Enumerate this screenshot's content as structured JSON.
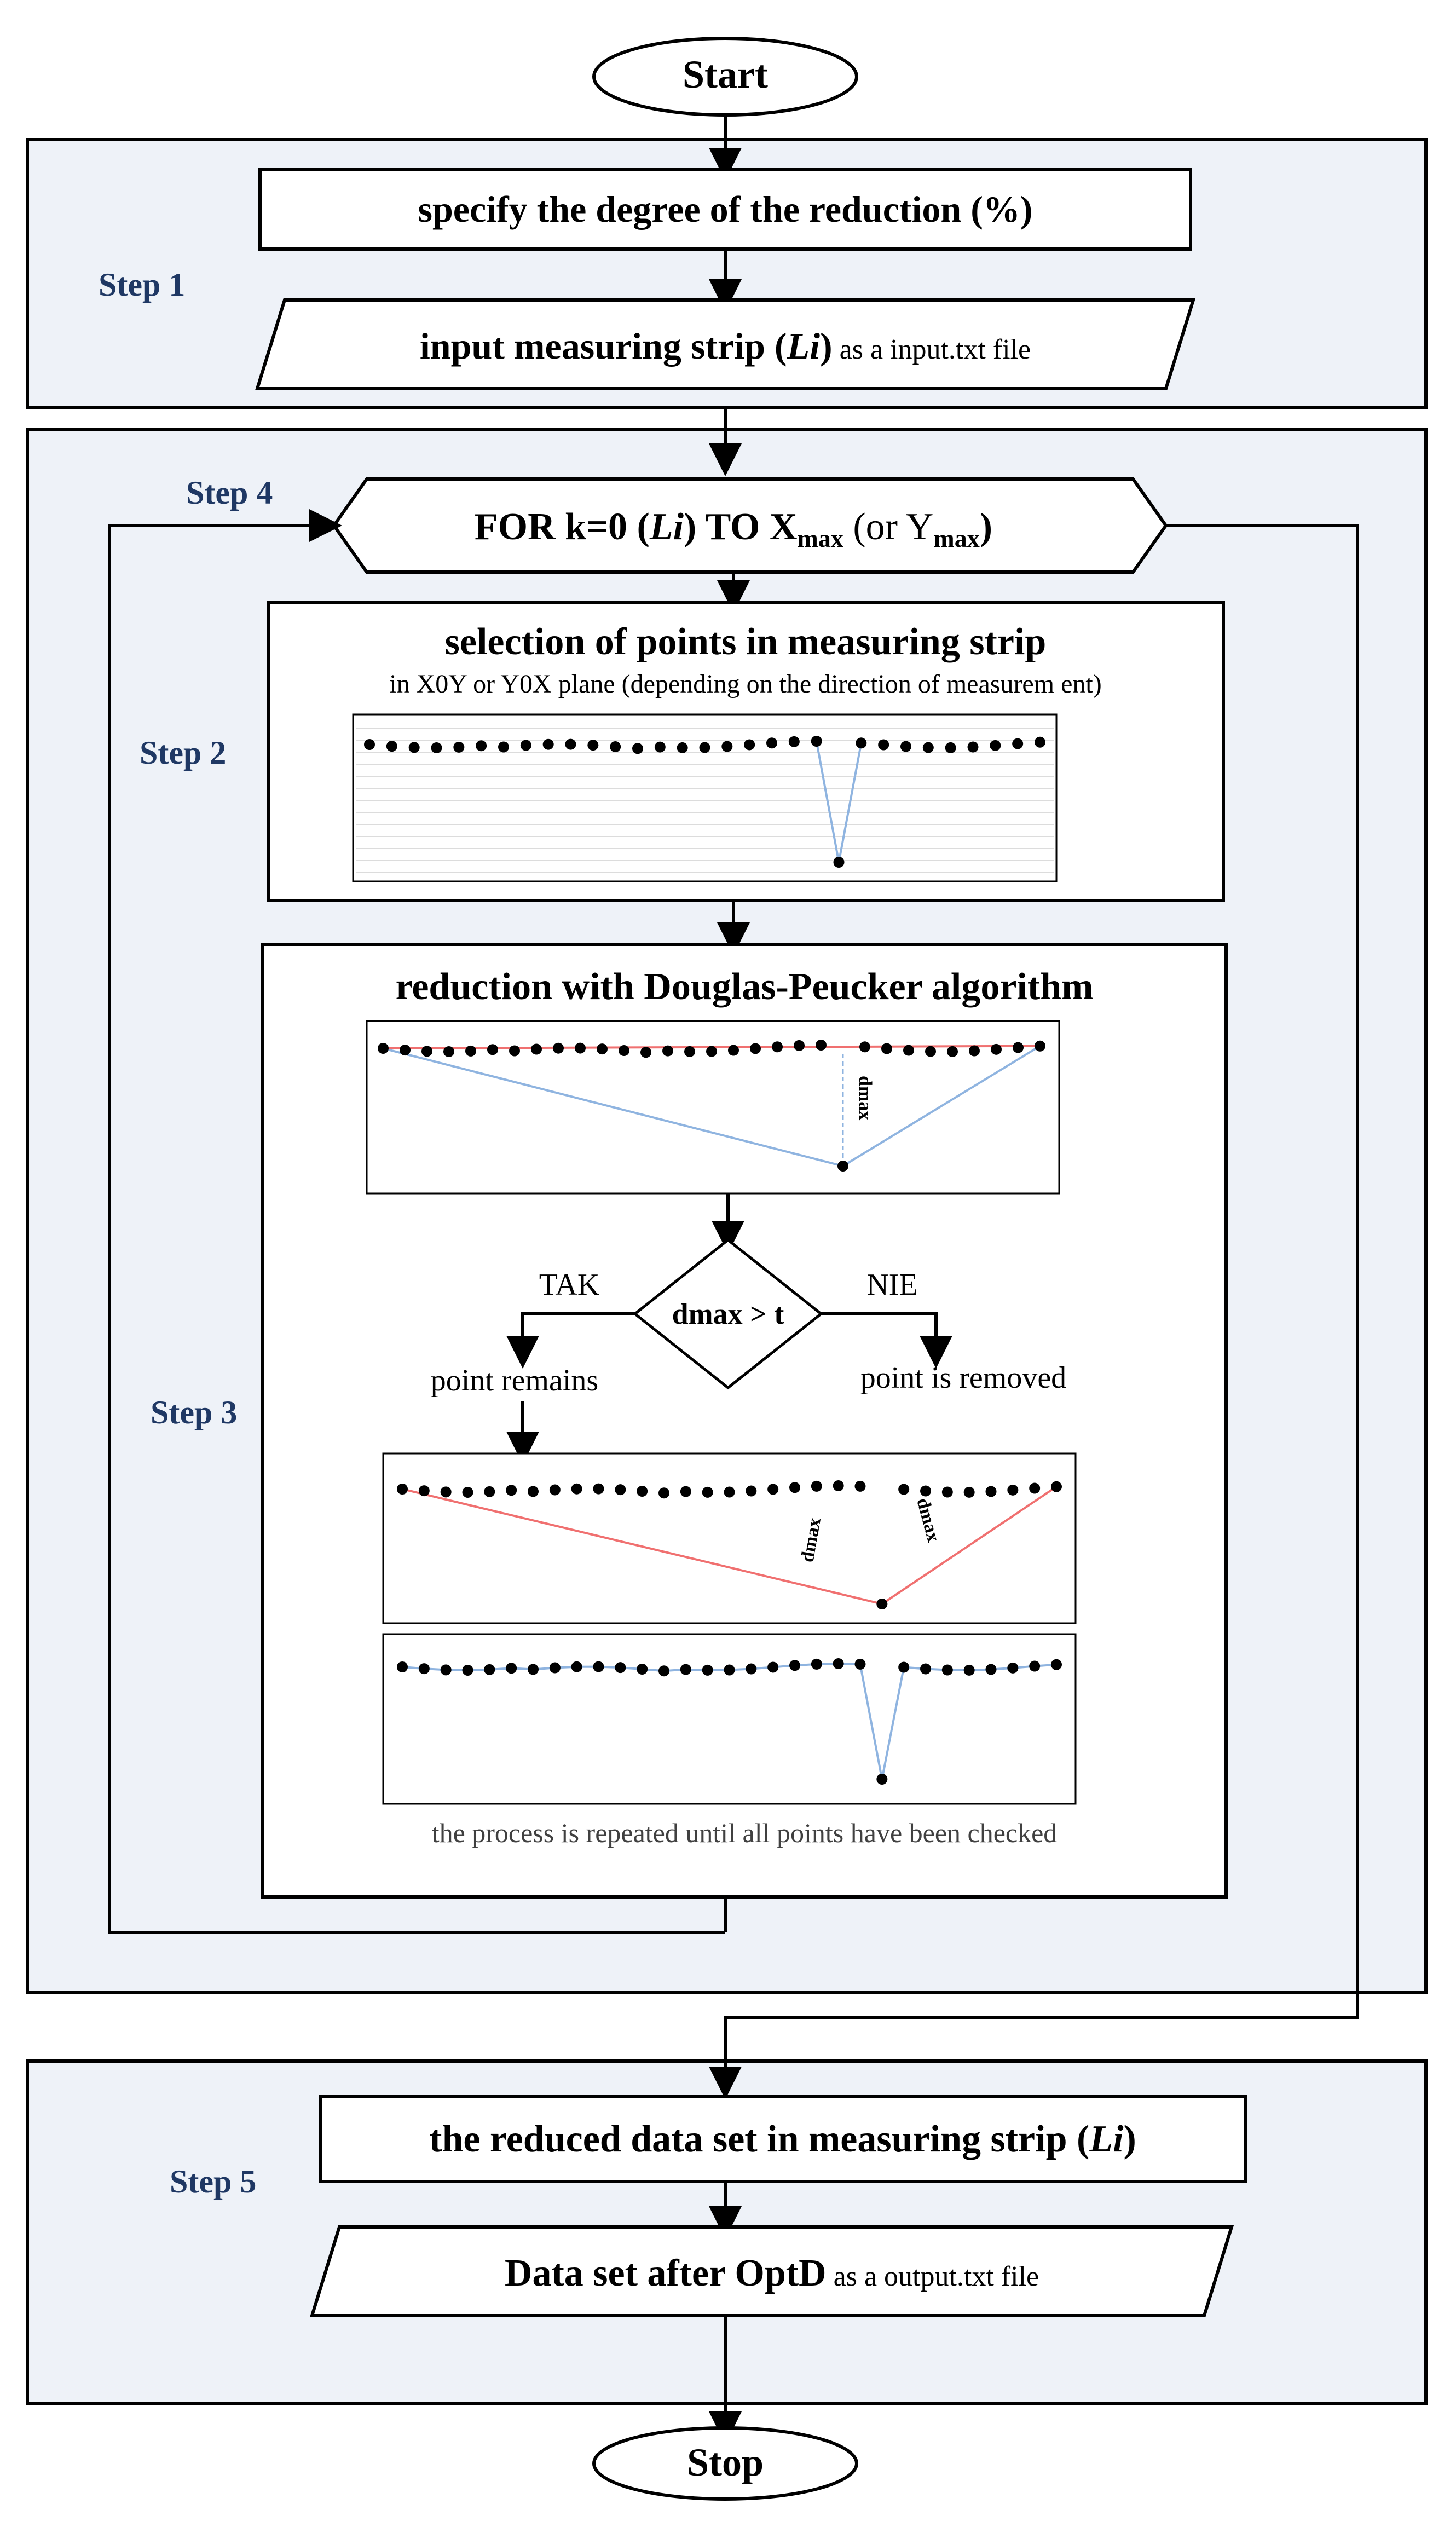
{
  "start_label": "Start",
  "stop_label": "Stop",
  "step_labels": {
    "step1": "Step 1",
    "step2": "Step 2",
    "step3": "Step 3",
    "step4": "Step 4",
    "step5": "Step 5"
  },
  "step1": {
    "degree_box": "specify the degree  of the reduction (%)",
    "input_bold": "input measuring strip (",
    "input_italic": "Li",
    "input_bold_close": ")",
    "input_tail": " as a input.txt file"
  },
  "loop": {
    "for_text": "FOR k=0 (",
    "for_li": "Li",
    "for_to": ") TO X",
    "x_sub": "max",
    "or_text": " (or Y",
    "y_sub": "max",
    "close": ")"
  },
  "step2": {
    "title": "selection of points in measuring strip",
    "subtitle": "in X0Y  or Y0X plane (depending on the direction of measurem ent)"
  },
  "step3": {
    "title": "reduction with Douglas-Peucker algorithm",
    "dmax_label": "dmax",
    "decision": "dmax > t",
    "yes": "TAK",
    "no": "NIE",
    "yes_result": "point remains",
    "no_result": "point is removed",
    "repeat_note": "the process is repeated until all points have been checked"
  },
  "step5": {
    "reduced_box": "the reduced data set in measuring strip (",
    "reduced_li": "Li",
    "reduced_close": ")",
    "output_bold": "Data set after OptD",
    "output_tail": " as a output.txt file"
  },
  "colors": {
    "panel_bg": "#eef2f8",
    "step_label": "#1f3864",
    "blue_line": "#8fb4e0",
    "red_line": "#f07070"
  }
}
